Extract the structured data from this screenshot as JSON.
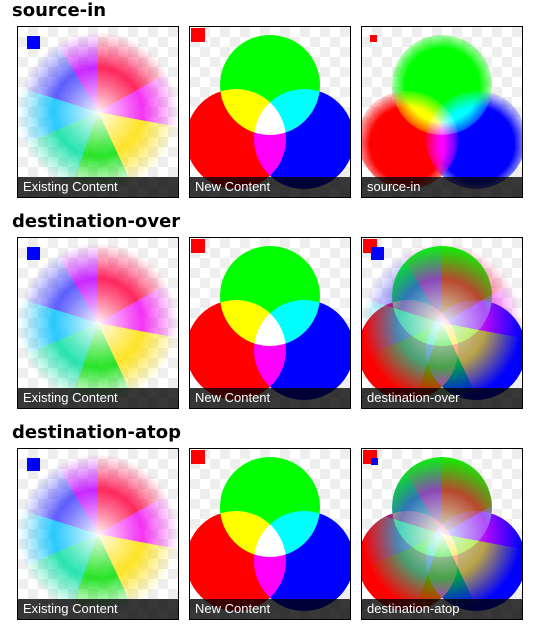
{
  "colors": {
    "red": "#ff0000",
    "green": "#00ff00",
    "blue": "#0000ff",
    "caption_bg": "#000000",
    "caption_text": "#ffffff",
    "checker": "#eeeeee"
  },
  "captions": {
    "existing": "Existing Content",
    "new": "New Content"
  },
  "sections": [
    {
      "heading": "source-in",
      "result_caption": "source-in"
    },
    {
      "heading": "destination-over",
      "result_caption": "destination-over"
    },
    {
      "heading": "destination-atop",
      "result_caption": "destination-atop"
    }
  ]
}
